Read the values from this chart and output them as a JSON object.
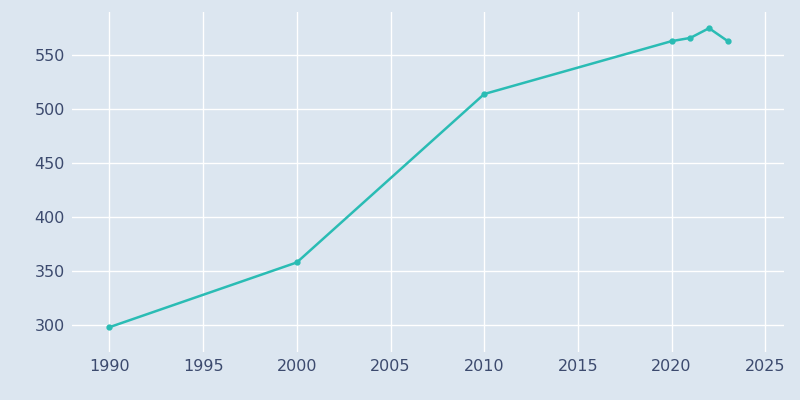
{
  "years": [
    1990,
    2000,
    2010,
    2020,
    2021,
    2022,
    2023
  ],
  "population": [
    298,
    358,
    514,
    563,
    566,
    575,
    563
  ],
  "line_color": "#2abcb4",
  "marker": "o",
  "marker_size": 3.5,
  "line_width": 1.8,
  "bg_color": "#dce6f0",
  "plot_bg_color": "#dce6f0",
  "grid_color": "#ffffff",
  "tick_color": "#3c4a6e",
  "xlim": [
    1988,
    2026
  ],
  "ylim": [
    275,
    590
  ],
  "xticks": [
    1990,
    1995,
    2000,
    2005,
    2010,
    2015,
    2020,
    2025
  ],
  "yticks": [
    300,
    350,
    400,
    450,
    500,
    550
  ],
  "tick_fontsize": 11.5
}
